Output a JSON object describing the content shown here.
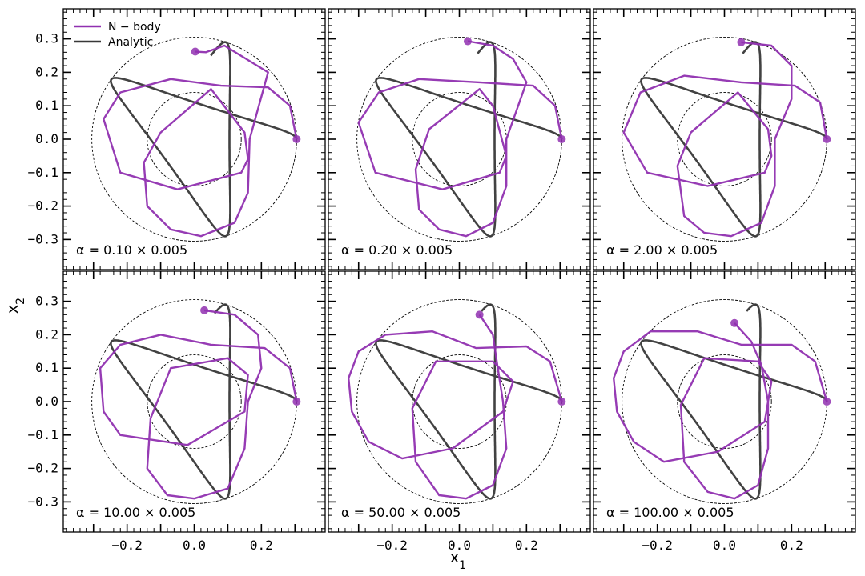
{
  "chart_data": {
    "type": "line",
    "xlabel": "x",
    "xlabel_sub": "1",
    "ylabel": "x",
    "ylabel_sub": "2",
    "xlim": [
      -0.39,
      0.39
    ],
    "ylim": [
      -0.39,
      0.39
    ],
    "x_ticks": [
      -0.2,
      0.0,
      0.2
    ],
    "x_tick_labels": [
      "−0.2",
      "0.0",
      "0.2"
    ],
    "y_ticks": [
      -0.3,
      -0.2,
      -0.1,
      0.0,
      0.1,
      0.2,
      0.3
    ],
    "y_tick_labels": [
      "−0.3",
      "−0.2",
      "−0.1",
      "0.0",
      "0.1",
      "0.2",
      "0.3"
    ],
    "legend": {
      "placement": "top-left",
      "entries": [
        {
          "label": "N − body",
          "color": "#9030b0"
        },
        {
          "label": "Analytic",
          "color": "#383838"
        }
      ]
    },
    "reference_circles": [
      {
        "r": 0.305,
        "style": "dashed"
      },
      {
        "r": 0.14,
        "style": "dashed"
      }
    ],
    "analytic_orbit": {
      "description_params": {
        "amplitude": 0.1,
        "radius": 0.205,
        "t_range": [
          0.0,
          8.1
        ]
      }
    },
    "panels": [
      {
        "label": "α = 0.10 × 0.005",
        "nbody": [
          [
            0.305,
            0.0
          ],
          [
            0.285,
            0.1
          ],
          [
            0.22,
            0.155
          ],
          [
            0.08,
            0.16
          ],
          [
            -0.07,
            0.18
          ],
          [
            -0.22,
            0.14
          ],
          [
            -0.27,
            0.06
          ],
          [
            -0.22,
            -0.1
          ],
          [
            -0.05,
            -0.15
          ],
          [
            0.14,
            -0.1
          ],
          [
            0.16,
            -0.06
          ],
          [
            0.15,
            0.02
          ],
          [
            0.05,
            0.15
          ],
          [
            -0.1,
            0.02
          ],
          [
            -0.15,
            -0.07
          ],
          [
            -0.14,
            -0.2
          ],
          [
            -0.07,
            -0.27
          ],
          [
            0.02,
            -0.29
          ],
          [
            0.12,
            -0.25
          ],
          [
            0.16,
            -0.16
          ],
          [
            0.165,
            0.0
          ],
          [
            0.22,
            0.2
          ],
          [
            0.09,
            0.28
          ],
          [
            0.035,
            0.26
          ],
          [
            0.003,
            0.262
          ]
        ],
        "analytic_end_t": 8.04
      },
      {
        "label": "α = 0.20 × 0.005",
        "nbody": [
          [
            0.305,
            0.0
          ],
          [
            0.285,
            0.1
          ],
          [
            0.22,
            0.16
          ],
          [
            0.06,
            0.17
          ],
          [
            -0.12,
            0.18
          ],
          [
            -0.24,
            0.14
          ],
          [
            -0.3,
            0.05
          ],
          [
            -0.25,
            -0.1
          ],
          [
            -0.05,
            -0.15
          ],
          [
            0.12,
            -0.1
          ],
          [
            0.14,
            -0.05
          ],
          [
            0.1,
            0.1
          ],
          [
            0.06,
            0.15
          ],
          [
            -0.09,
            0.03
          ],
          [
            -0.13,
            -0.09
          ],
          [
            -0.12,
            -0.21
          ],
          [
            -0.06,
            -0.27
          ],
          [
            0.02,
            -0.29
          ],
          [
            0.1,
            -0.25
          ],
          [
            0.14,
            -0.14
          ],
          [
            0.14,
            0.0
          ],
          [
            0.2,
            0.17
          ],
          [
            0.16,
            0.24
          ],
          [
            0.1,
            0.28
          ],
          [
            0.025,
            0.293
          ]
        ],
        "analytic_end_t": 8.0
      },
      {
        "label": "α = 2.00 × 0.005",
        "nbody": [
          [
            0.305,
            0.0
          ],
          [
            0.285,
            0.11
          ],
          [
            0.21,
            0.16
          ],
          [
            0.05,
            0.17
          ],
          [
            -0.12,
            0.19
          ],
          [
            -0.25,
            0.14
          ],
          [
            -0.3,
            0.02
          ],
          [
            -0.23,
            -0.1
          ],
          [
            -0.05,
            -0.14
          ],
          [
            0.12,
            -0.1
          ],
          [
            0.14,
            -0.05
          ],
          [
            0.13,
            0.03
          ],
          [
            0.04,
            0.14
          ],
          [
            -0.1,
            0.02
          ],
          [
            -0.14,
            -0.08
          ],
          [
            -0.12,
            -0.23
          ],
          [
            -0.06,
            -0.28
          ],
          [
            0.02,
            -0.29
          ],
          [
            0.11,
            -0.25
          ],
          [
            0.15,
            -0.14
          ],
          [
            0.15,
            0.0
          ],
          [
            0.2,
            0.12
          ],
          [
            0.2,
            0.22
          ],
          [
            0.14,
            0.28
          ],
          [
            0.05,
            0.29
          ]
        ],
        "analytic_end_t": 8.0
      },
      {
        "label": "α = 10.00 × 0.005",
        "nbody": [
          [
            0.305,
            0.0
          ],
          [
            0.285,
            0.1
          ],
          [
            0.21,
            0.16
          ],
          [
            0.05,
            0.17
          ],
          [
            -0.1,
            0.2
          ],
          [
            -0.22,
            0.17
          ],
          [
            -0.28,
            0.1
          ],
          [
            -0.27,
            -0.03
          ],
          [
            -0.22,
            -0.1
          ],
          [
            -0.02,
            -0.13
          ],
          [
            0.15,
            -0.03
          ],
          [
            0.16,
            0.08
          ],
          [
            0.1,
            0.13
          ],
          [
            -0.07,
            0.1
          ],
          [
            -0.13,
            -0.05
          ],
          [
            -0.14,
            -0.2
          ],
          [
            -0.08,
            -0.28
          ],
          [
            0.0,
            -0.29
          ],
          [
            0.1,
            -0.26
          ],
          [
            0.15,
            -0.14
          ],
          [
            0.16,
            0.0
          ],
          [
            0.2,
            0.1
          ],
          [
            0.19,
            0.2
          ],
          [
            0.12,
            0.26
          ],
          [
            0.03,
            0.273
          ]
        ],
        "analytic_end_t": 7.95
      },
      {
        "label": "α = 50.00 × 0.005",
        "nbody": [
          [
            0.305,
            0.0
          ],
          [
            0.27,
            0.12
          ],
          [
            0.2,
            0.165
          ],
          [
            0.05,
            0.16
          ],
          [
            -0.08,
            0.21
          ],
          [
            -0.22,
            0.2
          ],
          [
            -0.3,
            0.15
          ],
          [
            -0.33,
            0.07
          ],
          [
            -0.32,
            -0.03
          ],
          [
            -0.27,
            -0.12
          ],
          [
            -0.17,
            -0.17
          ],
          [
            -0.02,
            -0.14
          ],
          [
            0.13,
            -0.03
          ],
          [
            0.16,
            0.06
          ],
          [
            0.1,
            0.12
          ],
          [
            -0.07,
            0.12
          ],
          [
            -0.14,
            -0.02
          ],
          [
            -0.13,
            -0.18
          ],
          [
            -0.06,
            -0.28
          ],
          [
            0.02,
            -0.29
          ],
          [
            0.1,
            -0.25
          ],
          [
            0.14,
            -0.14
          ],
          [
            0.13,
            0.0
          ],
          [
            0.11,
            0.13
          ],
          [
            0.1,
            0.2
          ],
          [
            0.06,
            0.26
          ]
        ],
        "analytic_end_t": 7.9
      },
      {
        "label": "α = 100.00 × 0.005",
        "nbody": [
          [
            0.305,
            0.0
          ],
          [
            0.27,
            0.12
          ],
          [
            0.2,
            0.17
          ],
          [
            0.05,
            0.17
          ],
          [
            -0.08,
            0.21
          ],
          [
            -0.22,
            0.21
          ],
          [
            -0.3,
            0.15
          ],
          [
            -0.33,
            0.07
          ],
          [
            -0.32,
            -0.03
          ],
          [
            -0.27,
            -0.12
          ],
          [
            -0.18,
            -0.18
          ],
          [
            -0.02,
            -0.15
          ],
          [
            0.12,
            -0.06
          ],
          [
            0.14,
            0.06
          ],
          [
            0.1,
            0.12
          ],
          [
            -0.06,
            0.13
          ],
          [
            -0.13,
            -0.01
          ],
          [
            -0.12,
            -0.18
          ],
          [
            -0.05,
            -0.27
          ],
          [
            0.03,
            -0.29
          ],
          [
            0.1,
            -0.25
          ],
          [
            0.13,
            -0.14
          ],
          [
            0.13,
            0.0
          ],
          [
            0.11,
            0.11
          ],
          [
            0.08,
            0.18
          ],
          [
            0.03,
            0.235
          ]
        ],
        "analytic_end_t": 7.9
      }
    ]
  }
}
